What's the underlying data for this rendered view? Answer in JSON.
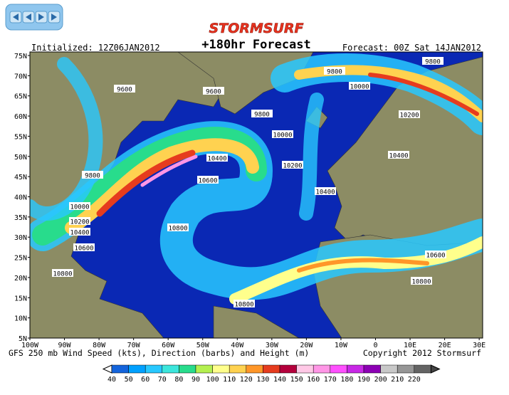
{
  "header": {
    "logo": "STORMSURF",
    "title": "+180hr Forecast",
    "initialized": "Initialized: 12Z06JAN2012",
    "forecast": "Forecast: 00Z Sat 14JAN2012"
  },
  "map": {
    "lat_labels": [
      "75N",
      "70N",
      "65N",
      "60N",
      "55N",
      "50N",
      "45N",
      "40N",
      "35N",
      "30N",
      "25N",
      "20N",
      "15N",
      "10N",
      "5N"
    ],
    "lon_labels": [
      "100W",
      "90W",
      "80W",
      "70W",
      "60W",
      "50W",
      "40W",
      "30W",
      "20W",
      "10W",
      "0",
      "10E",
      "20E",
      "30E"
    ],
    "contour_labels": [
      "9800",
      "9800",
      "10000",
      "9600",
      "9600",
      "9800",
      "10200",
      "10000",
      "10400",
      "10400",
      "10200",
      "10600",
      "9800",
      "10400",
      "10000",
      "10200",
      "10400",
      "10800",
      "10600",
      "10600",
      "10800",
      "10800",
      "10800"
    ]
  },
  "footer": {
    "caption": "GFS 250 mb Wind Speed (kts), Direction (barbs) and Height (m)",
    "copyright": "Copyright 2012 Stormsurf"
  },
  "colorbar": {
    "levels": [
      40,
      50,
      60,
      70,
      80,
      90,
      100,
      110,
      120,
      130,
      140,
      150,
      160,
      170,
      180,
      190,
      200,
      210,
      220
    ],
    "colors": [
      "#1464dc",
      "#00a0ff",
      "#28c8ff",
      "#3ce6dc",
      "#28dc8c",
      "#b4f050",
      "#ffff8c",
      "#ffd250",
      "#ff9628",
      "#e63c1e",
      "#b4003c",
      "#ffc8e6",
      "#ff96e6",
      "#ff50ff",
      "#c828e6",
      "#8c00b4",
      "#c8c8c8",
      "#969696",
      "#646464"
    ]
  }
}
